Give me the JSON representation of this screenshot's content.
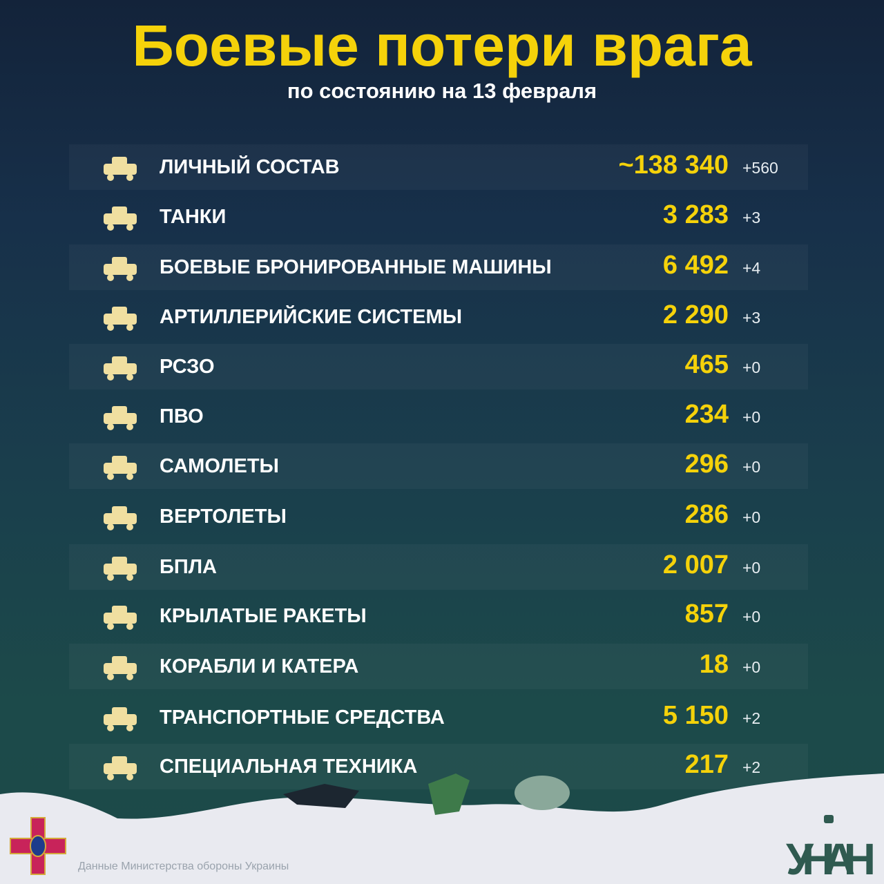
{
  "header": {
    "title": "Боевые потери врага",
    "subtitle": "по состоянию на 13 февраля"
  },
  "colors": {
    "accent": "#f5d20a",
    "background": "#17304a",
    "text": "#ffffff"
  },
  "rows": [
    {
      "icon": "soldier-icon",
      "label": "ЛИЧНЫЙ СОСТАВ",
      "value": "~138 340",
      "delta": "+560"
    },
    {
      "icon": "tank-icon",
      "label": "ТАНКИ",
      "value": "3 283",
      "delta": "+3"
    },
    {
      "icon": "armored-vehicle-icon",
      "label": "БОЕВЫЕ БРОНИРОВАННЫЕ МАШИНЫ",
      "value": "6 492",
      "delta": "+4"
    },
    {
      "icon": "artillery-icon",
      "label": "АРТИЛЛЕРИЙСКИЕ СИСТЕМЫ",
      "value": "2 290",
      "delta": "+3"
    },
    {
      "icon": "mlrs-icon",
      "label": "РСЗО",
      "value": "465",
      "delta": "+0"
    },
    {
      "icon": "air-defense-icon",
      "label": "ПВО",
      "value": "234",
      "delta": "+0"
    },
    {
      "icon": "jet-icon",
      "label": "САМОЛЕТЫ",
      "value": "296",
      "delta": "+0"
    },
    {
      "icon": "helicopter-icon",
      "label": "ВЕРТОЛЕТЫ",
      "value": "286",
      "delta": "+0"
    },
    {
      "icon": "drone-icon",
      "label": "БПЛА",
      "value": "2 007",
      "delta": "+0"
    },
    {
      "icon": "cruise-missile-icon",
      "label": "КРЫЛАТЫЕ РАКЕТЫ",
      "value": "857",
      "delta": "+0"
    },
    {
      "icon": "warship-icon",
      "label": "КОРАБЛИ И КАТЕРА",
      "value": "18",
      "delta": "+0"
    },
    {
      "icon": "truck-icon",
      "label": "ТРАНСПОРТНЫЕ СРЕДСТВА",
      "value": "5 150",
      "delta": "+2"
    },
    {
      "icon": "excavator-icon",
      "label": "СПЕЦИАЛЬНАЯ ТЕХНИКА",
      "value": "217",
      "delta": "+2"
    }
  ],
  "footer": {
    "source": "Данные Министерства обороны Украины",
    "logo": "УНІАН"
  }
}
